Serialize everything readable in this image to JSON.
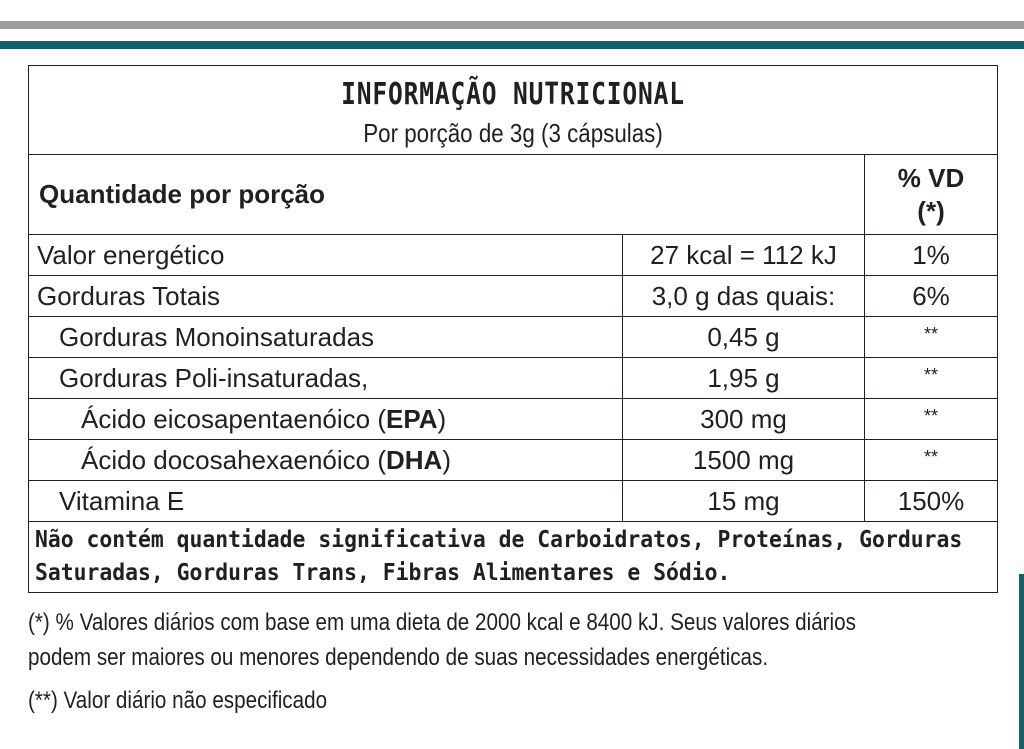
{
  "title": "INFORMAÇÃO NUTRICIONAL",
  "subtitle": "Por porção de 3g (3 cápsulas)",
  "header": {
    "label": "Quantidade por porção",
    "vd_line1": "% VD",
    "vd_line2": "(*)"
  },
  "rows": [
    {
      "name": "Valor energético",
      "amount": "27 kcal = 112 kJ",
      "vd": "1%"
    },
    {
      "name": "Gorduras Totais",
      "amount": "3,0 g das quais:",
      "vd": "6%"
    },
    {
      "name": "Gorduras Monoinsaturadas",
      "amount": "0,45 g",
      "vd": "**"
    },
    {
      "name": "Gorduras Poli-insaturadas,",
      "amount": "1,95 g",
      "vd": "**"
    },
    {
      "name_prefix": "Ácido eicosapentaenóico (",
      "name_bold": "EPA",
      "name_suffix": ")",
      "amount": "300 mg",
      "vd": "**"
    },
    {
      "name_prefix": "Ácido docosahexaenóico (",
      "name_bold": "DHA",
      "name_suffix": ")",
      "amount": "1500 mg",
      "vd": "**"
    },
    {
      "name": "Vitamina E",
      "amount": "15 mg",
      "vd": "150%"
    }
  ],
  "not_contains_line1": "Não contém quantidade significativa de Carboidratos, Proteínas, Gorduras",
  "not_contains_line2": "Saturadas, Gorduras Trans, Fibras Alimentares e Sódio.",
  "footnote1_line1": "(*) % Valores diários com base em uma dieta de 2000 kcal e 8400 kJ. Seus valores diários",
  "footnote1_line2": "podem ser maiores ou menores dependendo de suas necessidades energéticas.",
  "footnote2": "(**) Valor diário não especificado",
  "colors": {
    "teal": "#0f6068",
    "gray": "#9c9c9e",
    "text": "#231f20"
  }
}
